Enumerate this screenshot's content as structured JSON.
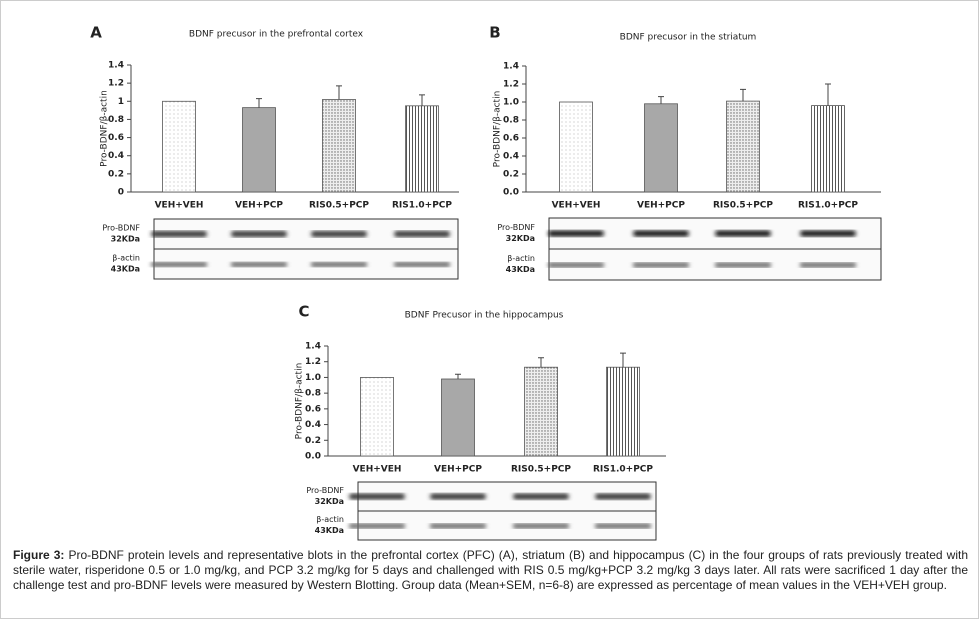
{
  "chart_data": [
    {
      "type": "bar",
      "panel": "A",
      "title": "BDNF precusor in the prefrontal cortex",
      "ylabel": "Pro-BDNF/β-actin",
      "categories": [
        "VEH+VEH",
        "VEH+PCP",
        "RIS0.5+PCP",
        "RIS1.0+PCP"
      ],
      "values": [
        1.0,
        0.93,
        1.02,
        0.95
      ],
      "errors": [
        0,
        0.1,
        0.15,
        0.12
      ],
      "ylim": [
        0,
        1.4
      ],
      "yticks": [
        0,
        0.2,
        0.4,
        0.6,
        0.8,
        1,
        1.2,
        1.4
      ],
      "blot_labels": [
        [
          "Pro-BDNF",
          "32KDa"
        ],
        [
          "β-actin",
          "43KDa"
        ]
      ]
    },
    {
      "type": "bar",
      "panel": "B",
      "title": "BDNF precusor in the striatum",
      "ylabel": "Pro-BDNF/β-actin",
      "categories": [
        "VEH+VEH",
        "VEH+PCP",
        "RIS0.5+PCP",
        "RIS1.0+PCP"
      ],
      "values": [
        1.0,
        0.98,
        1.01,
        0.96
      ],
      "errors": [
        0,
        0.08,
        0.13,
        0.24
      ],
      "ylim": [
        0,
        1.4
      ],
      "yticks": [
        {
          "value": 0,
          "label": "0.0"
        },
        0.2,
        0.4,
        0.6,
        0.8,
        {
          "value": 1,
          "label": "1.0"
        },
        1.2,
        1.4
      ],
      "blot_labels": [
        [
          "Pro-BDNF",
          "32KDa"
        ],
        [
          "β-actin",
          "43KDa"
        ]
      ]
    },
    {
      "type": "bar",
      "panel": "C",
      "title": "BDNF Precusor in the hippocampus",
      "ylabel": "Pro-BDNF/β-actin",
      "categories": [
        "VEH+VEH",
        "VEH+PCP",
        "RIS0.5+PCP",
        "RIS1.0+PCP"
      ],
      "values": [
        1.0,
        0.98,
        1.13,
        1.13
      ],
      "errors": [
        0,
        0.06,
        0.12,
        0.18
      ],
      "ylim": [
        0,
        1.4
      ],
      "yticks": [
        {
          "value": 0,
          "label": "0.0"
        },
        0.2,
        0.4,
        0.6,
        0.8,
        {
          "value": 1,
          "label": "1.0"
        },
        1.2,
        1.4
      ],
      "blot_labels": [
        [
          "Pro-BDNF",
          "32KDa"
        ],
        [
          "β-actin",
          "43KDa"
        ]
      ]
    }
  ],
  "caption": {
    "label": "Figure 3:",
    "text": "Pro-BDNF protein levels and representative blots in the prefrontal cortex (PFC) (A), striatum (B) and hippocampus (C) in the four groups of rats previously treated with sterile water, risperidone 0.5 or 1.0 mg/kg, and PCP 3.2 mg/kg for 5 days and challenged with RIS 0.5 mg/kg+PCP 3.2 mg/kg 3 days later. All rats were sacrificed 1 day after the challenge test and pro-BDNF levels were measured by Western Blotting. Group data (Mean+SEM, n=6-8) are expressed as percentage of mean values in the VEH+VEH group."
  }
}
